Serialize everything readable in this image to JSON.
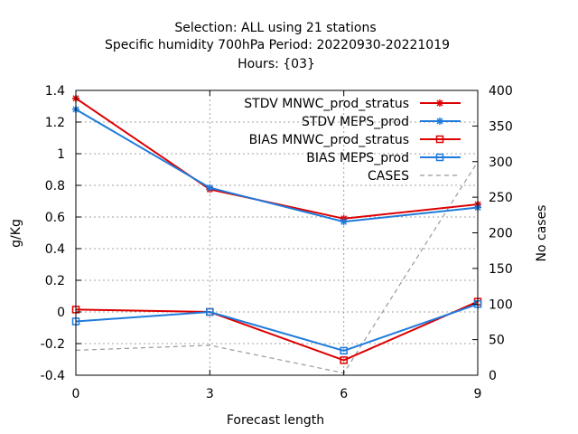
{
  "chart_data": {
    "type": "line",
    "title_lines": [
      "Selection: ALL using    21 stations",
      "Specific humidity 700hPa   Period: 20220930-20221019",
      "Hours: {03}"
    ],
    "xlabel": "Forecast length",
    "ylabel": "g/Kg",
    "y2label": "No cases",
    "x": [
      0,
      3,
      6,
      9
    ],
    "xlim": [
      0,
      9
    ],
    "ylim": [
      -0.4,
      1.4
    ],
    "y2lim": [
      0,
      400
    ],
    "xticks": [
      0,
      3,
      6,
      9
    ],
    "yticks": [
      -0.4,
      -0.2,
      0,
      0.2,
      0.4,
      0.6,
      0.8,
      1,
      1.2,
      1.4
    ],
    "y2ticks": [
      0,
      50,
      100,
      150,
      200,
      250,
      300,
      350,
      400
    ],
    "grid": true,
    "legend_position": "top-right",
    "series": [
      {
        "name": "STDV MNWC_prod_stratus",
        "axis": "y",
        "color": "#dd0000",
        "marker": "star",
        "dashed": false,
        "values": [
          1.35,
          0.775,
          0.59,
          0.68
        ]
      },
      {
        "name": "STDV MEPS_prod",
        "axis": "y",
        "color": "#1e7bdc",
        "marker": "star",
        "dashed": false,
        "values": [
          1.28,
          0.785,
          0.57,
          0.66
        ]
      },
      {
        "name": "BIAS MNWC_prod_stratus",
        "axis": "y",
        "color": "#dd0000",
        "marker": "square",
        "dashed": false,
        "values": [
          0.015,
          0.0,
          -0.305,
          0.065
        ]
      },
      {
        "name": "BIAS MEPS_prod",
        "axis": "y",
        "color": "#1e7bdc",
        "marker": "square",
        "dashed": false,
        "values": [
          -0.06,
          0.0,
          -0.245,
          0.05
        ]
      },
      {
        "name": "CASES",
        "axis": "y2",
        "color": "#999999",
        "marker": "none",
        "dashed": true,
        "values": [
          35,
          42,
          3,
          300
        ]
      }
    ]
  }
}
